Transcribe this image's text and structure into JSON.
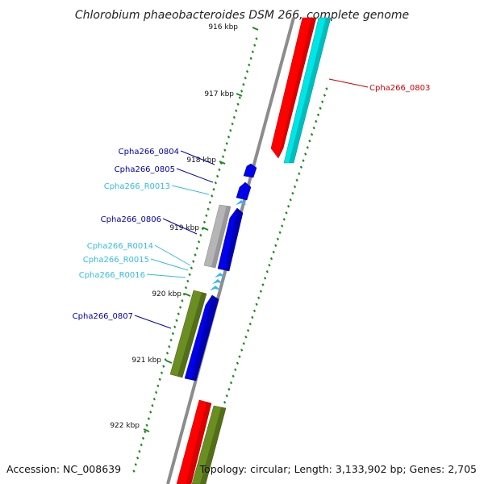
{
  "title": "Chlorobium phaeobacteroides DSM 266, complete genome",
  "footer": {
    "accession": "Accession: NC_008639",
    "topology": "Topology: circular; Length: 3,133,902 bp; Genes: 2,705"
  },
  "colors": {
    "backbone": "#8c8c8c",
    "tick": "#1f8a1f",
    "cds_forward": "#0000ee",
    "cds_reverse": "#ff0000",
    "cyan": "#00e5e5",
    "olive": "#6b8e23",
    "gray": "#b5b5b5",
    "rna": "#39b7f2",
    "label_dark": "#0000aa",
    "label_light": "#33bbdd",
    "label_red": "#cc0000"
  },
  "ruler": [
    {
      "label": "916 kbp"
    },
    {
      "label": "917 kbp"
    },
    {
      "label": "918 kbp"
    },
    {
      "label": "919 kbp"
    },
    {
      "label": "920 kbp"
    },
    {
      "label": "921 kbp"
    },
    {
      "label": "922 kbp"
    }
  ],
  "genes": [
    {
      "label": "Cpha266_0803",
      "color_key": "label_red"
    },
    {
      "label": "Cpha266_0804",
      "color_key": "label_dark"
    },
    {
      "label": "Cpha266_0805",
      "color_key": "label_dark"
    },
    {
      "label": "Cpha266_R0013",
      "color_key": "label_light"
    },
    {
      "label": "Cpha266_0806",
      "color_key": "label_dark"
    },
    {
      "label": "Cpha266_R0014",
      "color_key": "label_light"
    },
    {
      "label": "Cpha266_R0015",
      "color_key": "label_light"
    },
    {
      "label": "Cpha266_R0016",
      "color_key": "label_light"
    },
    {
      "label": "Cpha266_0807",
      "color_key": "label_dark"
    }
  ]
}
